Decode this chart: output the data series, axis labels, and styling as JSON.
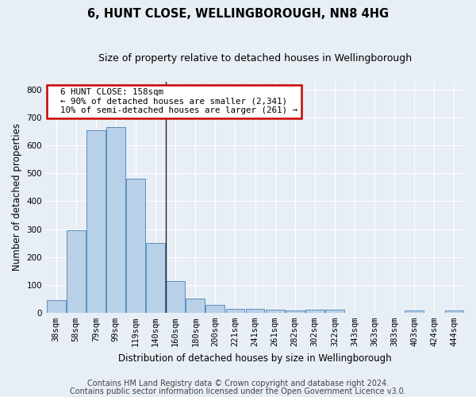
{
  "title": "6, HUNT CLOSE, WELLINGBOROUGH, NN8 4HG",
  "subtitle": "Size of property relative to detached houses in Wellingborough",
  "xlabel": "Distribution of detached houses by size in Wellingborough",
  "ylabel": "Number of detached properties",
  "categories": [
    "38sqm",
    "58sqm",
    "79sqm",
    "99sqm",
    "119sqm",
    "140sqm",
    "160sqm",
    "180sqm",
    "200sqm",
    "221sqm",
    "241sqm",
    "261sqm",
    "282sqm",
    "302sqm",
    "322sqm",
    "343sqm",
    "363sqm",
    "383sqm",
    "403sqm",
    "424sqm",
    "444sqm"
  ],
  "values": [
    45,
    295,
    655,
    665,
    480,
    250,
    113,
    50,
    27,
    15,
    15,
    10,
    8,
    10,
    10,
    0,
    0,
    0,
    8,
    0,
    8
  ],
  "bar_color": "#b8d0e8",
  "bar_edge_color": "#5a8fc0",
  "ylim": [
    0,
    830
  ],
  "yticks": [
    0,
    100,
    200,
    300,
    400,
    500,
    600,
    700,
    800
  ],
  "annotation_text": "  6 HUNT CLOSE: 158sqm\n  ← 90% of detached houses are smaller (2,341)\n  10% of semi-detached houses are larger (261) →",
  "annotation_box_color": "#ffffff",
  "annotation_box_edge": "#cc0000",
  "vline_index": 6,
  "footer1": "Contains HM Land Registry data © Crown copyright and database right 2024.",
  "footer2": "Contains public sector information licensed under the Open Government Licence v3.0.",
  "background_color": "#e8eef5",
  "plot_background": "#e8eef5",
  "title_fontsize": 10.5,
  "subtitle_fontsize": 9,
  "axis_label_fontsize": 8.5,
  "tick_fontsize": 7.5,
  "footer_fontsize": 7
}
